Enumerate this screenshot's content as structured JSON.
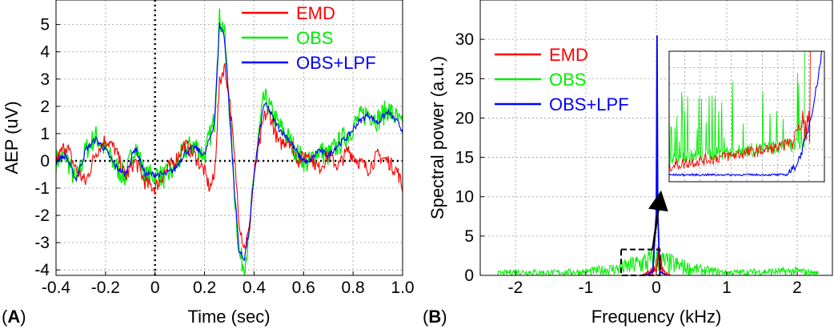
{
  "panels": {
    "a": {
      "label_prefix": "(",
      "label_letter": "A",
      "label_suffix": ")"
    },
    "b": {
      "label_prefix": "(",
      "label_letter": "B",
      "label_suffix": ")"
    }
  },
  "colors": {
    "EMD": "#ff0000",
    "OBS": "#00ee00",
    "OBS+LPF": "#0000ff"
  },
  "chart_data": [
    {
      "type": "line",
      "title": "",
      "xlabel": "Time (sec)",
      "ylabel": "AEP (uV)",
      "xlim": [
        -0.4,
        1.0
      ],
      "ylim": [
        -4.2,
        5.9
      ],
      "xticks": [
        -0.4,
        -0.2,
        0,
        0.2,
        0.4,
        0.6,
        0.8,
        1.0
      ],
      "xtick_labels": [
        "-0.4",
        "-0.2",
        "0",
        "0.2",
        "0.4",
        "0.6",
        "0.8",
        "1.0"
      ],
      "yticks": [
        -4,
        -3,
        -2,
        -1,
        0,
        1,
        2,
        3,
        4,
        5
      ],
      "ytick_labels": [
        "-4",
        "-3",
        "-2",
        "-1",
        "0",
        "1",
        "2",
        "3",
        "4",
        "5"
      ],
      "grid": true,
      "legend_position": "top-right",
      "reference_lines": {
        "zero_x": 0,
        "zero_y": 0
      },
      "series": [
        {
          "name": "EMD",
          "x": [
            -0.4,
            -0.36,
            -0.32,
            -0.28,
            -0.24,
            -0.2,
            -0.16,
            -0.12,
            -0.08,
            -0.04,
            0.0,
            0.04,
            0.08,
            0.12,
            0.16,
            0.2,
            0.22,
            0.24,
            0.26,
            0.28,
            0.3,
            0.32,
            0.34,
            0.36,
            0.38,
            0.4,
            0.42,
            0.44,
            0.46,
            0.48,
            0.5,
            0.54,
            0.58,
            0.62,
            0.66,
            0.7,
            0.74,
            0.78,
            0.82,
            0.86,
            0.9,
            0.94,
            0.98,
            1.0
          ],
          "y": [
            0.0,
            0.6,
            -0.3,
            -0.8,
            0.3,
            0.8,
            0.4,
            -0.6,
            0.0,
            -0.8,
            -1.0,
            -0.4,
            0.0,
            0.6,
            0.2,
            -0.4,
            -1.0,
            -0.6,
            2.8,
            3.5,
            2.4,
            0.2,
            -2.2,
            -3.2,
            -2.6,
            -0.5,
            0.5,
            1.6,
            1.8,
            1.2,
            0.6,
            0.8,
            0.0,
            0.3,
            -0.3,
            0.2,
            -0.2,
            0.4,
            0.0,
            -0.3,
            0.2,
            0.0,
            -0.4,
            -1.0
          ]
        },
        {
          "name": "OBS",
          "x": [
            -0.4,
            -0.36,
            -0.32,
            -0.28,
            -0.24,
            -0.2,
            -0.16,
            -0.12,
            -0.08,
            -0.04,
            0.0,
            0.04,
            0.08,
            0.12,
            0.16,
            0.2,
            0.24,
            0.26,
            0.28,
            0.3,
            0.32,
            0.34,
            0.36,
            0.38,
            0.4,
            0.42,
            0.44,
            0.46,
            0.48,
            0.5,
            0.54,
            0.58,
            0.62,
            0.66,
            0.7,
            0.74,
            0.78,
            0.82,
            0.86,
            0.9,
            0.94,
            0.98,
            1.0
          ],
          "y": [
            0.0,
            0.2,
            -0.8,
            0.4,
            0.9,
            0.4,
            -0.2,
            -0.6,
            0.6,
            -0.6,
            -0.5,
            -0.6,
            -0.3,
            0.4,
            0.6,
            0.2,
            1.5,
            5.2,
            4.8,
            2.0,
            -1.0,
            -3.5,
            -3.8,
            -2.8,
            -0.5,
            1.0,
            2.3,
            2.0,
            1.6,
            1.3,
            0.8,
            0.2,
            -0.1,
            0.4,
            0.2,
            0.6,
            1.0,
            1.5,
            1.8,
            1.5,
            1.9,
            1.5,
            1.2
          ]
        },
        {
          "name": "OBS+LPF",
          "x": [
            -0.4,
            -0.36,
            -0.32,
            -0.28,
            -0.24,
            -0.2,
            -0.16,
            -0.12,
            -0.08,
            -0.04,
            0.0,
            0.04,
            0.08,
            0.12,
            0.16,
            0.2,
            0.24,
            0.26,
            0.28,
            0.3,
            0.32,
            0.34,
            0.36,
            0.38,
            0.4,
            0.42,
            0.44,
            0.46,
            0.48,
            0.5,
            0.54,
            0.58,
            0.62,
            0.66,
            0.7,
            0.74,
            0.78,
            0.82,
            0.86,
            0.9,
            0.94,
            0.98,
            1.0
          ],
          "y": [
            0.0,
            0.2,
            -0.7,
            0.4,
            0.8,
            0.4,
            -0.2,
            -0.5,
            0.5,
            -0.5,
            -0.5,
            -0.5,
            -0.3,
            0.3,
            0.5,
            0.2,
            1.4,
            5.0,
            4.6,
            1.9,
            -1.0,
            -3.3,
            -3.6,
            -2.6,
            -0.5,
            0.9,
            2.1,
            1.9,
            1.5,
            1.2,
            0.8,
            0.2,
            -0.1,
            0.4,
            0.2,
            0.6,
            0.9,
            1.4,
            1.7,
            1.4,
            1.8,
            1.4,
            1.1
          ]
        }
      ]
    },
    {
      "type": "line",
      "title": "",
      "xlabel": "Frequency (kHz)",
      "ylabel": "Spectral power (a.u.)",
      "xlim": [
        -2.5,
        2.5
      ],
      "ylim": [
        0,
        35
      ],
      "xticks": [
        -2,
        -1,
        0,
        1,
        2
      ],
      "xtick_labels": [
        "-2",
        "-1",
        "0",
        "1",
        "2"
      ],
      "yticks": [
        0,
        5,
        10,
        15,
        20,
        25,
        30
      ],
      "ytick_labels": [
        "0",
        "5",
        "10",
        "15",
        "20",
        "25",
        "30"
      ],
      "grid": true,
      "legend_position": "top-left",
      "inset": "zoom of the dashed region (-0.5 to 0.05 kHz, 0 to 3.3 a.u.), placed top-right",
      "zoom_box": {
        "x": [
          -0.5,
          0.05
        ],
        "y": [
          0,
          3.3
        ]
      },
      "series": [
        {
          "name": "EMD",
          "x": [
            -0.2,
            -0.1,
            0.0,
            0.03,
            0.1,
            0.2
          ],
          "y": [
            0.1,
            0.5,
            1.2,
            3.0,
            0.6,
            0.1
          ]
        },
        {
          "name": "OBS",
          "x": [
            -2.25,
            -2.0,
            -1.5,
            -1.0,
            -0.5,
            -0.3,
            -0.1,
            0.0,
            0.1,
            0.3,
            0.5,
            1.0,
            1.5,
            2.0,
            2.3
          ],
          "y": [
            0.3,
            0.5,
            0.4,
            0.5,
            1.0,
            1.5,
            2.0,
            2.3,
            1.8,
            1.4,
            0.9,
            0.4,
            0.5,
            0.6,
            0.3
          ]
        },
        {
          "name": "OBS+LPF",
          "x": [
            -0.15,
            -0.05,
            0.0,
            0.01,
            0.02,
            0.05,
            0.15
          ],
          "y": [
            0.0,
            0.5,
            8.0,
            30.5,
            8.0,
            0.5,
            0.0
          ]
        }
      ]
    }
  ]
}
